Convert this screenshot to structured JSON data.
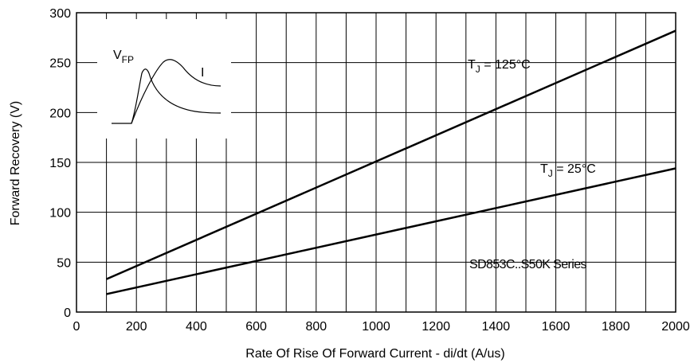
{
  "chart_data": {
    "type": "line",
    "xlabel": "Rate Of Rise Of Forward Current - di/dt (A/us)",
    "ylabel": "Forward Recovery (V)",
    "xlim": [
      0,
      2000
    ],
    "ylim": [
      0,
      300
    ],
    "xticks": [
      0,
      200,
      400,
      600,
      800,
      1000,
      1200,
      1400,
      1600,
      1800,
      2000
    ],
    "yticks": [
      0,
      50,
      100,
      150,
      200,
      250,
      300
    ],
    "grid": true,
    "series": [
      {
        "name": "TJ = 125°C",
        "label_main": "T",
        "label_sub": "J",
        "label_rest": " = 125°C",
        "x": [
          100,
          2000
        ],
        "y": [
          33,
          282
        ]
      },
      {
        "name": "TJ = 25°C",
        "label_main": "T",
        "label_sub": "J",
        "label_rest": " = 25°C",
        "x": [
          100,
          2000
        ],
        "y": [
          18,
          144
        ]
      }
    ],
    "annotation": "SD853C..S50K Series",
    "inset": {
      "voltage_label_main": "V",
      "voltage_label_sub": "FP",
      "current_label": "I"
    }
  }
}
